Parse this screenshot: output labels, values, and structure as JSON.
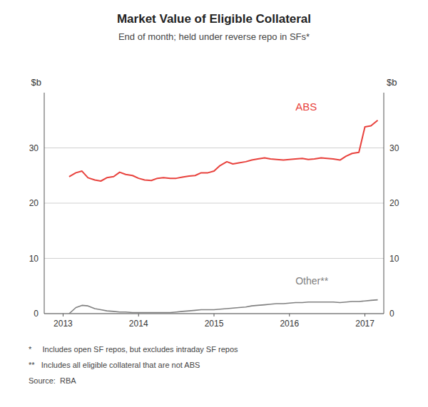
{
  "chart_data": {
    "type": "line",
    "title": "Market Value of Eligible Collateral",
    "subtitle": "End of month; held under reverse repo in SFs*",
    "y_label": "$b",
    "y2_label": "$b",
    "footnotes": [
      "*     Includes open SF repos, but excludes intraday SF repos",
      "**   Includes all eligible collateral that are not ABS",
      "Source:  RBA"
    ],
    "x": [
      2013.08,
      2013.17,
      2013.25,
      2013.33,
      2013.42,
      2013.5,
      2013.58,
      2013.67,
      2013.75,
      2013.83,
      2013.92,
      2014.0,
      2014.08,
      2014.17,
      2014.25,
      2014.33,
      2014.42,
      2014.5,
      2014.58,
      2014.67,
      2014.75,
      2014.83,
      2014.92,
      2015.0,
      2015.08,
      2015.17,
      2015.25,
      2015.33,
      2015.42,
      2015.5,
      2015.58,
      2015.67,
      2015.75,
      2015.83,
      2015.92,
      2016.0,
      2016.08,
      2016.17,
      2016.25,
      2016.33,
      2016.42,
      2016.5,
      2016.58,
      2016.67,
      2016.75,
      2016.83,
      2016.92,
      2017.0,
      2017.08,
      2017.17
    ],
    "series": [
      {
        "name": "ABS",
        "color": "#e8413c",
        "values": [
          24.8,
          25.5,
          25.8,
          24.6,
          24.2,
          24.0,
          24.6,
          24.8,
          25.6,
          25.2,
          25.0,
          24.5,
          24.2,
          24.1,
          24.5,
          24.6,
          24.5,
          24.5,
          24.7,
          24.9,
          25.0,
          25.5,
          25.5,
          25.8,
          26.8,
          27.5,
          27.1,
          27.3,
          27.5,
          27.8,
          28.0,
          28.2,
          28.0,
          27.9,
          27.8,
          27.9,
          28.0,
          28.1,
          27.9,
          28.0,
          28.2,
          28.1,
          28.0,
          27.8,
          28.5,
          29.0,
          29.2,
          33.8,
          34.0,
          35.0
        ]
      },
      {
        "name": "Other**",
        "color": "#808080",
        "values": [
          0.0,
          1.1,
          1.5,
          1.4,
          0.9,
          0.7,
          0.5,
          0.4,
          0.3,
          0.3,
          0.2,
          0.2,
          0.2,
          0.2,
          0.2,
          0.2,
          0.2,
          0.3,
          0.4,
          0.5,
          0.6,
          0.7,
          0.7,
          0.7,
          0.8,
          0.9,
          1.0,
          1.1,
          1.2,
          1.4,
          1.5,
          1.6,
          1.7,
          1.8,
          1.8,
          1.9,
          2.0,
          2.0,
          2.1,
          2.1,
          2.1,
          2.1,
          2.1,
          2.0,
          2.1,
          2.2,
          2.2,
          2.3,
          2.4,
          2.5
        ]
      }
    ],
    "xlim": [
      2012.75,
      2017.25
    ],
    "xticks": [
      2013,
      2014,
      2015,
      2016,
      2017
    ],
    "ylim": [
      0,
      40
    ],
    "yticks": [
      0,
      10,
      20,
      30
    ],
    "y2lim": [
      0,
      40
    ],
    "y2ticks": [
      0,
      10,
      20,
      30
    ],
    "grid": true
  }
}
